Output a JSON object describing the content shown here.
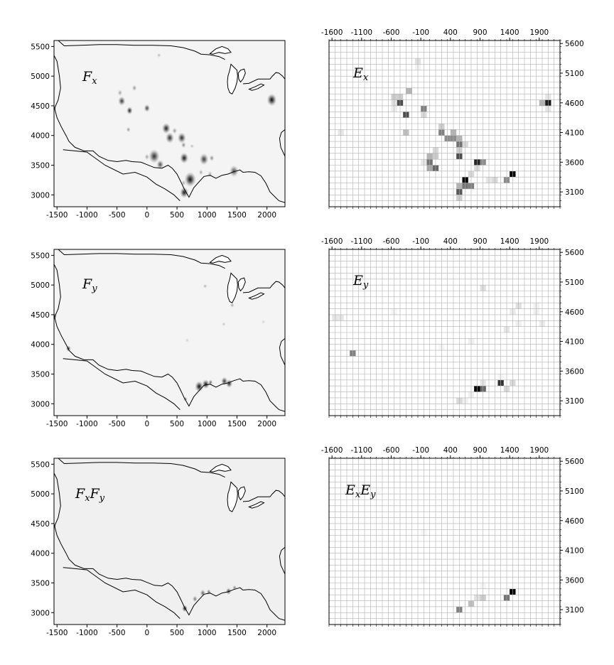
{
  "chart_data": [
    {
      "type": "heatmap",
      "kind": "density-map",
      "label_main": "F",
      "label_sub": "x",
      "xlim": [
        -1550,
        2300
      ],
      "ylim": [
        2800,
        5600
      ],
      "xticks": [
        -1500,
        -1000,
        -500,
        0,
        500,
        1000,
        1500,
        2000
      ],
      "yticks": [
        3000,
        3500,
        4000,
        4500,
        5000,
        5500
      ],
      "background": "#f4f4f4",
      "blobs": [
        {
          "x": -1550,
          "y": 4460,
          "r": 28,
          "v": 1.0
        },
        {
          "x": 200,
          "y": 5350,
          "r": 30,
          "v": 0.25
        },
        {
          "x": -450,
          "y": 4720,
          "r": 40,
          "v": 0.35
        },
        {
          "x": -420,
          "y": 4580,
          "r": 60,
          "v": 0.8
        },
        {
          "x": -210,
          "y": 4800,
          "r": 40,
          "v": 0.4
        },
        {
          "x": -290,
          "y": 4420,
          "r": 50,
          "v": 0.9
        },
        {
          "x": 0,
          "y": 4460,
          "r": 50,
          "v": 0.75
        },
        {
          "x": -310,
          "y": 4100,
          "r": 35,
          "v": 0.4
        },
        {
          "x": 320,
          "y": 4120,
          "r": 70,
          "v": 0.9
        },
        {
          "x": 460,
          "y": 4080,
          "r": 40,
          "v": 0.4
        },
        {
          "x": 380,
          "y": 3960,
          "r": 70,
          "v": 0.85
        },
        {
          "x": 580,
          "y": 3960,
          "r": 70,
          "v": 0.85
        },
        {
          "x": 610,
          "y": 3840,
          "r": 40,
          "v": 0.45
        },
        {
          "x": 120,
          "y": 3650,
          "r": 90,
          "v": 0.85
        },
        {
          "x": 220,
          "y": 3510,
          "r": 60,
          "v": 0.7
        },
        {
          "x": 0,
          "y": 3640,
          "r": 40,
          "v": 0.35
        },
        {
          "x": 620,
          "y": 3620,
          "r": 70,
          "v": 0.95
        },
        {
          "x": 950,
          "y": 3600,
          "r": 75,
          "v": 0.8
        },
        {
          "x": 1080,
          "y": 3620,
          "r": 40,
          "v": 0.45
        },
        {
          "x": 720,
          "y": 3260,
          "r": 95,
          "v": 1.0
        },
        {
          "x": 620,
          "y": 3040,
          "r": 70,
          "v": 0.95
        },
        {
          "x": 610,
          "y": 3200,
          "r": 40,
          "v": 0.3
        },
        {
          "x": 900,
          "y": 3380,
          "r": 35,
          "v": 0.35
        },
        {
          "x": 1050,
          "y": 3350,
          "r": 40,
          "v": 0.3
        },
        {
          "x": 1450,
          "y": 3400,
          "r": 75,
          "v": 0.7
        },
        {
          "x": 2080,
          "y": 4600,
          "r": 80,
          "v": 1.0
        },
        {
          "x": 750,
          "y": 3820,
          "r": 25,
          "v": 0.25
        }
      ]
    },
    {
      "type": "heatmap",
      "kind": "grid",
      "label_main": "E",
      "label_sub": "x",
      "xlim": [
        -1650,
        2250
      ],
      "ylim": [
        2850,
        5650
      ],
      "xticks": [
        -1600,
        -1100,
        -600,
        -100,
        400,
        900,
        1400,
        1900
      ],
      "yticks": [
        3100,
        3600,
        4100,
        4600,
        5100,
        5600
      ],
      "cell": 100,
      "cells": [
        [
          -150,
          5300,
          0.12
        ],
        [
          -150,
          5200,
          0.05
        ],
        [
          -300,
          4800,
          0.3
        ],
        [
          -450,
          4700,
          0.2
        ],
        [
          -550,
          4700,
          0.2
        ],
        [
          -550,
          4600,
          0.12
        ],
        [
          -450,
          4600,
          0.7
        ],
        [
          -50,
          4500,
          0.5
        ],
        [
          -50,
          4400,
          0.15
        ],
        [
          -350,
          4400,
          0.7
        ],
        [
          -550,
          4500,
          0.08
        ],
        [
          -1450,
          4100,
          0.1
        ],
        [
          -350,
          4100,
          0.25
        ],
        [
          250,
          4200,
          0.2
        ],
        [
          250,
          4100,
          0.5
        ],
        [
          350,
          4000,
          0.45
        ],
        [
          450,
          4100,
          0.3
        ],
        [
          450,
          4000,
          0.45
        ],
        [
          550,
          4000,
          0.3
        ],
        [
          550,
          3900,
          0.55
        ],
        [
          650,
          3900,
          0.15
        ],
        [
          550,
          3800,
          0.2
        ],
        [
          550,
          3700,
          0.7
        ],
        [
          150,
          3800,
          0.15
        ],
        [
          150,
          3700,
          0.2
        ],
        [
          50,
          3700,
          0.3
        ],
        [
          -50,
          3600,
          0.1
        ],
        [
          50,
          3600,
          0.55
        ],
        [
          150,
          3500,
          0.6
        ],
        [
          50,
          3500,
          0.35
        ],
        [
          850,
          3600,
          0.85
        ],
        [
          950,
          3600,
          0.45
        ],
        [
          850,
          3500,
          0.15
        ],
        [
          750,
          3400,
          0.15
        ],
        [
          650,
          3300,
          1.0
        ],
        [
          650,
          3200,
          0.55
        ],
        [
          750,
          3200,
          0.5
        ],
        [
          550,
          3200,
          0.3
        ],
        [
          550,
          3100,
          0.65
        ],
        [
          550,
          3000,
          0.2
        ],
        [
          1150,
          3300,
          0.15
        ],
        [
          1050,
          3300,
          0.1
        ],
        [
          1350,
          3300,
          0.45
        ],
        [
          1450,
          3400,
          1.0
        ],
        [
          2050,
          4600,
          0.9
        ],
        [
          1950,
          4600,
          0.3
        ],
        [
          2050,
          4500,
          0.1
        ],
        [
          2050,
          4700,
          0.1
        ]
      ]
    },
    {
      "type": "heatmap",
      "kind": "density-map",
      "label_main": "F",
      "label_sub": "y",
      "xlim": [
        -1550,
        2300
      ],
      "ylim": [
        2800,
        5600
      ],
      "xticks": [
        -1500,
        -1000,
        -500,
        0,
        500,
        1000,
        1500,
        2000
      ],
      "yticks": [
        3000,
        3500,
        4000,
        4500,
        5000,
        5500
      ],
      "background": "#f4f4f4",
      "blobs": [
        {
          "x": -1550,
          "y": 4470,
          "r": 45,
          "v": 0.95
        },
        {
          "x": -1310,
          "y": 3930,
          "r": 40,
          "v": 0.8
        },
        {
          "x": 970,
          "y": 4980,
          "r": 22,
          "v": 0.3
        },
        {
          "x": 1420,
          "y": 4660,
          "r": 30,
          "v": 0.35
        },
        {
          "x": 1280,
          "y": 4340,
          "r": 18,
          "v": 0.2
        },
        {
          "x": 870,
          "y": 3290,
          "r": 70,
          "v": 1.0
        },
        {
          "x": 980,
          "y": 3330,
          "r": 60,
          "v": 0.95
        },
        {
          "x": 1060,
          "y": 3360,
          "r": 35,
          "v": 0.6
        },
        {
          "x": 1290,
          "y": 3380,
          "r": 55,
          "v": 0.8
        },
        {
          "x": 1370,
          "y": 3340,
          "r": 55,
          "v": 0.85
        },
        {
          "x": 640,
          "y": 3080,
          "r": 30,
          "v": 0.5
        },
        {
          "x": 1940,
          "y": 4380,
          "r": 12,
          "v": 0.15
        },
        {
          "x": 670,
          "y": 4070,
          "r": 10,
          "v": 0.15
        }
      ]
    },
    {
      "type": "heatmap",
      "kind": "grid",
      "label_main": "E",
      "label_sub": "y",
      "xlim": [
        -1650,
        2250
      ],
      "ylim": [
        2850,
        5650
      ],
      "xticks": [
        -1600,
        -1100,
        -600,
        -100,
        400,
        900,
        1400,
        1900
      ],
      "yticks": [
        3100,
        3600,
        4100,
        4600,
        5100,
        5600
      ],
      "cell": 100,
      "cells": [
        [
          -1550,
          4500,
          0.1
        ],
        [
          -1450,
          4500,
          0.1
        ],
        [
          -1250,
          3900,
          0.5
        ],
        [
          950,
          5000,
          0.12
        ],
        [
          -550,
          4600,
          0.04
        ],
        [
          1550,
          4700,
          0.12
        ],
        [
          1450,
          4600,
          0.08
        ],
        [
          1850,
          4700,
          0.06
        ],
        [
          1850,
          4600,
          0.06
        ],
        [
          1950,
          4400,
          0.08
        ],
        [
          1350,
          4300,
          0.1
        ],
        [
          1550,
          4400,
          0.06
        ],
        [
          250,
          4000,
          0.04
        ],
        [
          750,
          4100,
          0.06
        ],
        [
          850,
          3300,
          1.0
        ],
        [
          950,
          3300,
          0.6
        ],
        [
          950,
          3400,
          0.1
        ],
        [
          1250,
          3400,
          0.8
        ],
        [
          1350,
          3300,
          0.15
        ],
        [
          1450,
          3400,
          0.15
        ],
        [
          550,
          3100,
          0.15
        ],
        [
          650,
          3100,
          0.06
        ],
        [
          750,
          3200,
          0.06
        ],
        [
          1250,
          3500,
          0.04
        ]
      ]
    },
    {
      "type": "heatmap",
      "kind": "density-map",
      "label_main": "F",
      "label_sub": "x",
      "label_main2": "F",
      "label_sub2": "y",
      "xlim": [
        -1550,
        2300
      ],
      "ylim": [
        2800,
        5600
      ],
      "xticks": [
        -1500,
        -1000,
        -500,
        0,
        500,
        1000,
        1500,
        2000
      ],
      "yticks": [
        3000,
        3500,
        4000,
        4500,
        5000,
        5500
      ],
      "background": "#f0f0f0",
      "blobs": [
        {
          "x": -1550,
          "y": 4460,
          "r": 25,
          "v": 1.0
        },
        {
          "x": 630,
          "y": 3070,
          "r": 45,
          "v": 0.95
        },
        {
          "x": 800,
          "y": 3230,
          "r": 40,
          "v": 0.55
        },
        {
          "x": 930,
          "y": 3330,
          "r": 45,
          "v": 0.6
        },
        {
          "x": 1030,
          "y": 3350,
          "r": 35,
          "v": 0.55
        },
        {
          "x": 1360,
          "y": 3360,
          "r": 45,
          "v": 0.75
        },
        {
          "x": 1460,
          "y": 3420,
          "r": 30,
          "v": 0.5
        }
      ]
    },
    {
      "type": "heatmap",
      "kind": "grid",
      "label_main": "E",
      "label_sub": "x",
      "label_main2": "E",
      "label_sub2": "y",
      "xlim": [
        -1650,
        2250
      ],
      "ylim": [
        2850,
        5650
      ],
      "xticks": [
        -1600,
        -1100,
        -600,
        -100,
        400,
        900,
        1400,
        1900
      ],
      "yticks": [
        3100,
        3600,
        4100,
        4600,
        5100,
        5600
      ],
      "cell": 100,
      "cells": [
        [
          -50,
          4400,
          0.03
        ],
        [
          -50,
          3600,
          0.03
        ],
        [
          550,
          3100,
          0.5
        ],
        [
          750,
          3200,
          0.25
        ],
        [
          850,
          3300,
          0.12
        ],
        [
          950,
          3300,
          0.2
        ],
        [
          1350,
          3300,
          0.55
        ],
        [
          1450,
          3400,
          1.0
        ],
        [
          950,
          3500,
          0.04
        ]
      ]
    }
  ]
}
